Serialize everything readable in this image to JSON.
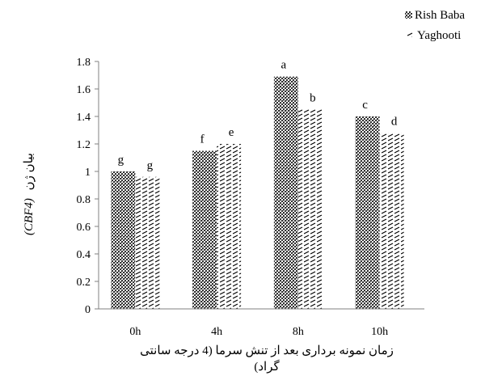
{
  "chart_data": {
    "type": "bar",
    "categories": [
      "0h",
      "4h",
      "8h",
      "10h"
    ],
    "series": [
      {
        "name": "Rish Baba",
        "values": [
          1.0,
          1.15,
          1.69,
          1.4
        ],
        "labels": [
          "g",
          "f",
          "a",
          "c"
        ]
      },
      {
        "name": "Yaghooti",
        "values": [
          0.96,
          1.2,
          1.45,
          1.28
        ],
        "labels": [
          "g",
          "e",
          "b",
          "d"
        ]
      }
    ],
    "y_ticks": [
      "0",
      "0.2",
      "0.4",
      "0.6",
      "0.8",
      "1",
      "1.2",
      "1.4",
      "1.6",
      "1.8"
    ],
    "ylim": [
      0,
      1.8
    ],
    "ylabel_fa": "بیان ژن",
    "ylabel_gene": "(CBF4)",
    "xlabel_line1": "زمان نمونه برداری بعد از تنش سرما (4 درجه سانتی",
    "xlabel_line2": "گراد)",
    "legend_position": "top-right",
    "grid": false
  }
}
